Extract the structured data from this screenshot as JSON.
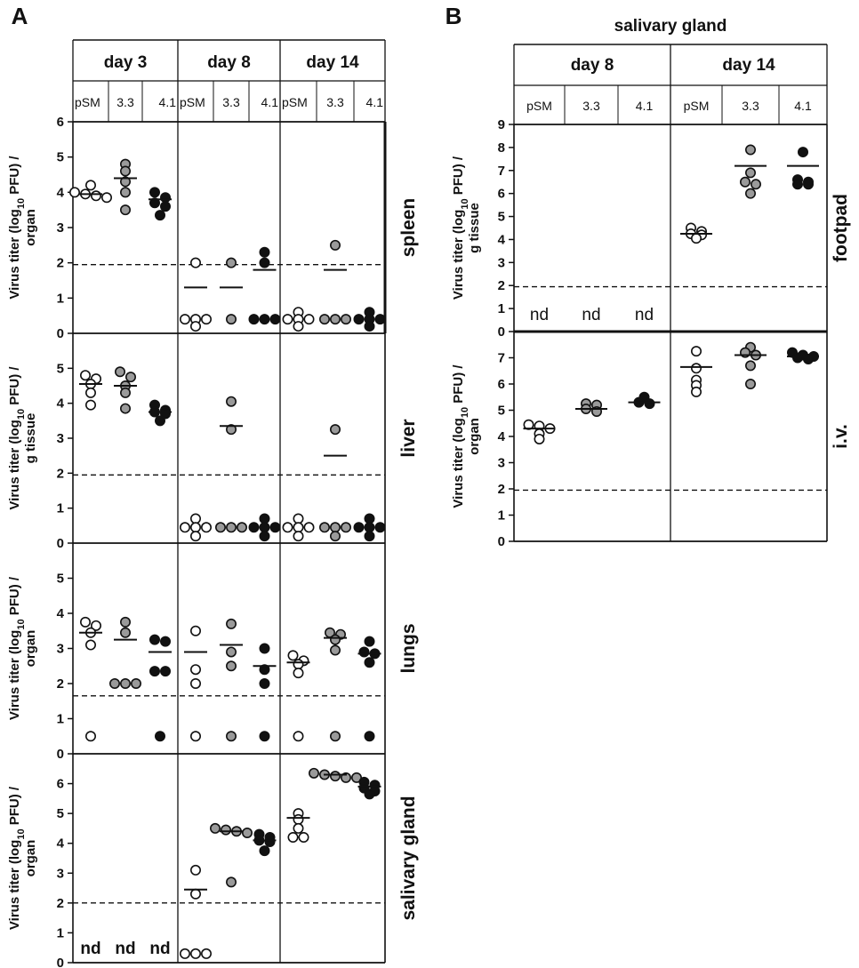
{
  "chart_data": [
    {
      "panel_label": "A",
      "type": "scatter",
      "x_groups": [
        {
          "day": "day 3",
          "strains": [
            "pSM",
            "3.3",
            "4.1"
          ]
        },
        {
          "day": "day 8",
          "strains": [
            "pSM",
            "3.3",
            "4.1"
          ]
        },
        {
          "day": "day 14",
          "strains": [
            "pSM",
            "3.3",
            "4.1"
          ]
        }
      ],
      "rows": [
        {
          "organ": "spleen",
          "ylabel": "Virus titer (log10 PFU) / organ",
          "ylim": [
            0,
            6
          ],
          "yticks": [
            "0",
            "1",
            "2",
            "3",
            "4",
            "5",
            "6"
          ],
          "detection_limit": 1.95,
          "series": [
            {
              "day": "day 3",
              "strain": "pSM",
              "points": [
                3.85,
                3.95,
                4.0,
                4.2,
                3.9
              ],
              "mean": 3.95
            },
            {
              "day": "day 3",
              "strain": "3.3",
              "points": [
                4.8,
                4.6,
                4.3,
                4.0,
                3.5
              ],
              "mean": 4.4
            },
            {
              "day": "day 3",
              "strain": "4.1",
              "points": [
                4.0,
                3.85,
                3.7,
                3.6,
                3.35
              ],
              "mean": 3.8
            },
            {
              "day": "day 8",
              "strain": "pSM",
              "points": [
                2.0,
                0.4,
                0.4,
                0.4,
                0.2
              ],
              "mean": 1.3
            },
            {
              "day": "day 8",
              "strain": "3.3",
              "points": [
                2.0,
                0.4
              ],
              "mean": 1.3
            },
            {
              "day": "day 8",
              "strain": "4.1",
              "points": [
                2.3,
                2.0,
                0.4,
                0.4,
                0.4
              ],
              "mean": 1.8
            },
            {
              "day": "day 14",
              "strain": "pSM",
              "points": [
                0.6,
                0.4,
                0.4,
                0.4,
                0.2
              ],
              "mean": null
            },
            {
              "day": "day 14",
              "strain": "3.3",
              "points": [
                2.5,
                0.4,
                0.4,
                0.4
              ],
              "mean": 1.8
            },
            {
              "day": "day 14",
              "strain": "4.1",
              "points": [
                0.6,
                0.4,
                0.4,
                0.4,
                0.2
              ],
              "mean": null
            }
          ]
        },
        {
          "organ": "liver",
          "ylabel": "Virus titer (log10 PFU) / g tissue",
          "ylim": [
            0,
            6
          ],
          "yticks": [
            "0",
            "1",
            "2",
            "3",
            "4",
            "5"
          ],
          "detection_limit": 1.95,
          "series": [
            {
              "day": "day 3",
              "strain": "pSM",
              "points": [
                4.8,
                4.7,
                4.55,
                4.3,
                3.95
              ],
              "mean": 4.55
            },
            {
              "day": "day 3",
              "strain": "3.3",
              "points": [
                4.9,
                4.75,
                4.5,
                4.3,
                3.85
              ],
              "mean": 4.5
            },
            {
              "day": "day 3",
              "strain": "4.1",
              "points": [
                3.95,
                3.8,
                3.75,
                3.7,
                3.5
              ],
              "mean": 3.75
            },
            {
              "day": "day 8",
              "strain": "pSM",
              "points": [
                0.7,
                0.45,
                0.45,
                0.45,
                0.2
              ],
              "mean": null
            },
            {
              "day": "day 8",
              "strain": "3.3",
              "points": [
                4.05,
                3.25,
                0.45,
                0.45,
                0.45
              ],
              "mean": 3.35
            },
            {
              "day": "day 8",
              "strain": "4.1",
              "points": [
                0.7,
                0.45,
                0.45,
                0.45,
                0.2
              ],
              "mean": null
            },
            {
              "day": "day 14",
              "strain": "pSM",
              "points": [
                0.7,
                0.45,
                0.45,
                0.45,
                0.2
              ],
              "mean": null
            },
            {
              "day": "day 14",
              "strain": "3.3",
              "points": [
                3.25,
                0.45,
                0.45,
                0.45,
                0.2
              ],
              "mean": 2.5
            },
            {
              "day": "day 14",
              "strain": "4.1",
              "points": [
                0.7,
                0.45,
                0.45,
                0.45,
                0.2
              ],
              "mean": null
            }
          ]
        },
        {
          "organ": "lungs",
          "ylabel": "Virus titer (log10 PFU) / organ",
          "ylim": [
            0,
            6
          ],
          "yticks": [
            "0",
            "1",
            "2",
            "3",
            "4",
            "5"
          ],
          "detection_limit": 1.65,
          "series": [
            {
              "day": "day 3",
              "strain": "pSM",
              "points": [
                3.75,
                3.65,
                3.45,
                3.1,
                0.5
              ],
              "mean": 3.45
            },
            {
              "day": "day 3",
              "strain": "3.3",
              "points": [
                3.75,
                3.45,
                2.0,
                2.0,
                2.0
              ],
              "mean": 3.25
            },
            {
              "day": "day 3",
              "strain": "4.1",
              "points": [
                3.25,
                3.2,
                2.35,
                2.35,
                0.5
              ],
              "mean": 2.9
            },
            {
              "day": "day 8",
              "strain": "pSM",
              "points": [
                3.5,
                2.4,
                2.0,
                0.5
              ],
              "mean": 2.9
            },
            {
              "day": "day 8",
              "strain": "3.3",
              "points": [
                3.7,
                2.9,
                2.5,
                0.5
              ],
              "mean": 3.1
            },
            {
              "day": "day 8",
              "strain": "4.1",
              "points": [
                3.0,
                2.4,
                2.0,
                0.5
              ],
              "mean": 2.5
            },
            {
              "day": "day 14",
              "strain": "pSM",
              "points": [
                2.8,
                2.65,
                2.55,
                2.3,
                0.5
              ],
              "mean": 2.6
            },
            {
              "day": "day 14",
              "strain": "3.3",
              "points": [
                3.45,
                3.4,
                3.25,
                2.95,
                0.5
              ],
              "mean": 3.3
            },
            {
              "day": "day 14",
              "strain": "4.1",
              "points": [
                3.2,
                2.9,
                2.85,
                2.6,
                0.5
              ],
              "mean": 2.85
            }
          ]
        },
        {
          "organ": "salivary gland",
          "ylabel": "Virus titer (log10 PFU) / organ",
          "ylim": [
            0,
            7
          ],
          "yticks": [
            "0",
            "1",
            "2",
            "3",
            "4",
            "5",
            "6"
          ],
          "detection_limit": 2.0,
          "series": [
            {
              "day": "day 3",
              "strain": "pSM",
              "points": [],
              "mean": null,
              "note": "nd"
            },
            {
              "day": "day 3",
              "strain": "3.3",
              "points": [],
              "mean": null,
              "note": "nd"
            },
            {
              "day": "day 3",
              "strain": "4.1",
              "points": [],
              "mean": null,
              "note": "nd"
            },
            {
              "day": "day 8",
              "strain": "pSM",
              "points": [
                3.1,
                2.3,
                0.3,
                0.3,
                0.3
              ],
              "mean": 2.45
            },
            {
              "day": "day 8",
              "strain": "3.3",
              "points": [
                4.5,
                4.45,
                4.4,
                4.35,
                2.7
              ],
              "mean": 4.4
            },
            {
              "day": "day 8",
              "strain": "4.1",
              "points": [
                4.3,
                4.2,
                4.1,
                4.05,
                3.75
              ],
              "mean": 4.1
            },
            {
              "day": "day 14",
              "strain": "pSM",
              "points": [
                5.0,
                4.8,
                4.5,
                4.2,
                4.2
              ],
              "mean": 4.85
            },
            {
              "day": "day 14",
              "strain": "3.3",
              "points": [
                6.35,
                6.3,
                6.25,
                6.2,
                6.2
              ],
              "mean": 6.3
            },
            {
              "day": "day 14",
              "strain": "4.1",
              "points": [
                6.05,
                5.95,
                5.85,
                5.75,
                5.65
              ],
              "mean": 5.9
            }
          ]
        }
      ]
    },
    {
      "panel_label": "B",
      "type": "scatter",
      "title": "salivary gland",
      "x_groups": [
        {
          "day": "day 8",
          "strains": [
            "pSM",
            "3.3",
            "4.1"
          ]
        },
        {
          "day": "day 14",
          "strains": [
            "pSM",
            "3.3",
            "4.1"
          ]
        }
      ],
      "rows": [
        {
          "route": "footpad",
          "ylabel": "Virus titer (log10 PFU) / g tissue",
          "ylim": [
            0,
            9
          ],
          "yticks": [
            "0",
            "1",
            "2",
            "3",
            "4",
            "5",
            "6",
            "7",
            "8",
            "9"
          ],
          "detection_limit": 1.95,
          "series": [
            {
              "day": "day 8",
              "strain": "pSM",
              "points": [],
              "mean": null,
              "note": "nd"
            },
            {
              "day": "day 8",
              "strain": "3.3",
              "points": [],
              "mean": null,
              "note": "nd"
            },
            {
              "day": "day 8",
              "strain": "4.1",
              "points": [],
              "mean": null,
              "note": "nd"
            },
            {
              "day": "day 14",
              "strain": "pSM",
              "points": [
                4.5,
                4.35,
                4.25,
                4.2,
                4.05
              ],
              "mean": 4.25
            },
            {
              "day": "day 14",
              "strain": "3.3",
              "points": [
                7.9,
                6.9,
                6.5,
                6.4,
                6.0
              ],
              "mean": 7.2
            },
            {
              "day": "day 14",
              "strain": "4.1",
              "points": [
                7.8,
                6.6,
                6.5,
                6.4,
                6.4
              ],
              "mean": 7.2
            }
          ]
        },
        {
          "route": "i.v.",
          "ylabel": "Virus titer (log10 PFU) / organ",
          "ylim": [
            0,
            8
          ],
          "yticks": [
            "0",
            "1",
            "2",
            "3",
            "4",
            "5",
            "6",
            "7"
          ],
          "detection_limit": 1.95,
          "series": [
            {
              "day": "day 8",
              "strain": "pSM",
              "points": [
                4.45,
                4.4,
                4.3,
                4.1,
                3.9
              ],
              "mean": 4.3
            },
            {
              "day": "day 8",
              "strain": "3.3",
              "points": [
                5.25,
                5.2,
                5.05,
                4.95
              ],
              "mean": 5.05
            },
            {
              "day": "day 8",
              "strain": "4.1",
              "points": [
                5.5,
                5.3,
                5.25
              ],
              "mean": 5.3
            },
            {
              "day": "day 14",
              "strain": "pSM",
              "points": [
                7.25,
                6.6,
                6.15,
                5.95,
                5.7
              ],
              "mean": 6.65
            },
            {
              "day": "day 14",
              "strain": "3.3",
              "points": [
                7.4,
                7.2,
                7.1,
                6.7,
                6.0
              ],
              "mean": 7.1
            },
            {
              "day": "day 14",
              "strain": "4.1",
              "points": [
                7.2,
                7.1,
                7.05,
                7.0,
                6.95
              ],
              "mean": 7.05
            }
          ]
        }
      ]
    }
  ]
}
